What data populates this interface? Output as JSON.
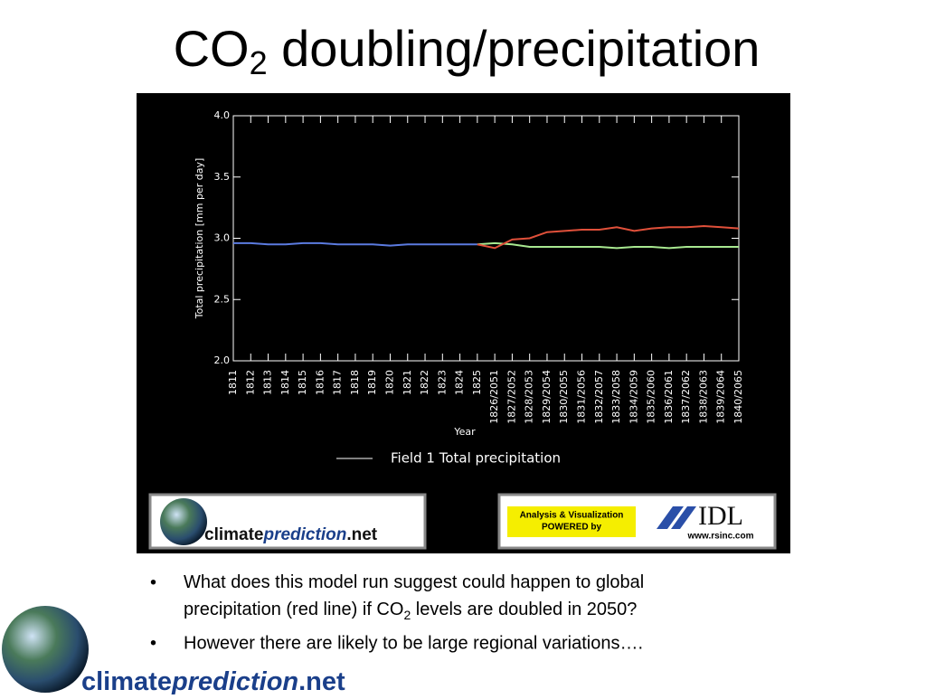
{
  "slide": {
    "title": {
      "main": "CO",
      "sub": "2",
      "rest": " doubling/precipitation"
    },
    "bullets": [
      {
        "parts": [
          "What does this model run suggest could happen to global precipitation (red line) if CO",
          "2",
          " levels are doubled in 2050?"
        ]
      },
      {
        "parts": [
          "However there are likely to be large regional variations…."
        ]
      }
    ],
    "logo": {
      "parts": [
        "climate",
        "prediction",
        ".net"
      ]
    },
    "idl": {
      "badge_line1": "Analysis & Visualization",
      "badge_line2": "POWERED by",
      "brand": "IDL",
      "url": "www.rsinc.com"
    }
  },
  "chart_data": {
    "type": "line",
    "xlabel": "Year",
    "ylabel": "Total precipitation [mm per day]",
    "legend": {
      "label": "Field 1 Total precipitation",
      "color": "#ffffff"
    },
    "categories": [
      "1811",
      "1812",
      "1813",
      "1814",
      "1815",
      "1816",
      "1817",
      "1818",
      "1819",
      "1820",
      "1821",
      "1822",
      "1823",
      "1824",
      "1825",
      "1826/2051",
      "1827/2052",
      "1828/2053",
      "1829/2054",
      "1830/2055",
      "1831/2056",
      "1832/2057",
      "1833/2058",
      "1834/2059",
      "1835/2060",
      "1836/2061",
      "1837/2062",
      "1838/2063",
      "1839/2064",
      "1840/2065"
    ],
    "series": [
      {
        "color": "#5b7be0",
        "values": [
          2.96,
          2.96,
          2.95,
          2.95,
          2.96,
          2.96,
          2.95,
          2.95,
          2.95,
          2.94,
          2.95,
          2.95,
          2.95,
          2.95,
          2.95,
          null,
          null,
          null,
          null,
          null,
          null,
          null,
          null,
          null,
          null,
          null,
          null,
          null,
          null,
          null
        ]
      },
      {
        "color": "#a8e890",
        "values": [
          null,
          null,
          null,
          null,
          null,
          null,
          null,
          null,
          null,
          null,
          null,
          null,
          null,
          null,
          2.95,
          2.96,
          2.95,
          2.93,
          2.93,
          2.93,
          2.93,
          2.93,
          2.92,
          2.93,
          2.93,
          2.92,
          2.93,
          2.93,
          2.93,
          2.93
        ]
      },
      {
        "color": "#e0503a",
        "values": [
          null,
          null,
          null,
          null,
          null,
          null,
          null,
          null,
          null,
          null,
          null,
          null,
          null,
          null,
          2.95,
          2.92,
          2.99,
          3.0,
          3.05,
          3.06,
          3.07,
          3.07,
          3.09,
          3.06,
          3.08,
          3.09,
          3.09,
          3.1,
          3.09,
          3.08
        ]
      }
    ],
    "ylim": [
      2.0,
      4.0
    ],
    "yticks": [
      {
        "value": 2,
        "label": "2.0"
      },
      {
        "value": 2.5,
        "label": "2.5"
      },
      {
        "value": 3,
        "label": "3.0"
      },
      {
        "value": 3.5,
        "label": "3.5"
      },
      {
        "value": 4,
        "label": "4.0"
      }
    ]
  }
}
